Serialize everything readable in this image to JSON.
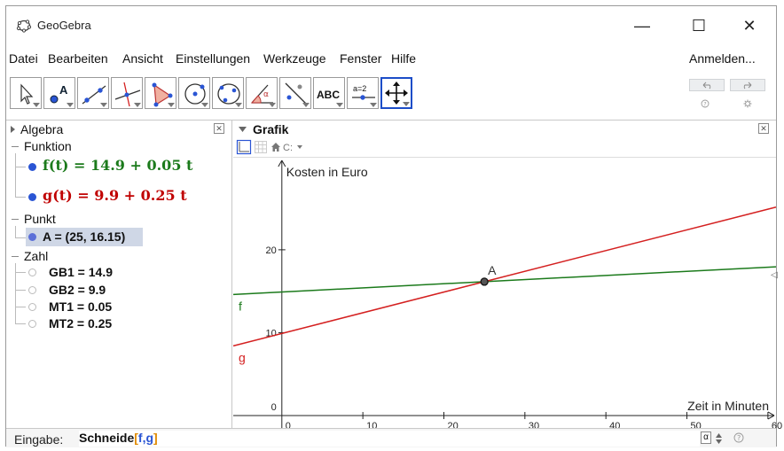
{
  "window": {
    "title": "GeoGebra",
    "minimize": "—",
    "maximize": "☐",
    "close": "✕"
  },
  "menu": {
    "items": [
      "Datei",
      "Bearbeiten",
      "Ansicht",
      "Einstellungen",
      "Werkzeuge",
      "Fenster",
      "Hilfe"
    ],
    "login": "Anmelden..."
  },
  "toolbar": {
    "tools": [
      {
        "name": "move-tool-icon",
        "label": ""
      },
      {
        "name": "point-tool-icon",
        "label": "A"
      },
      {
        "name": "line-tool-icon",
        "label": ""
      },
      {
        "name": "perpendicular-tool-icon",
        "label": ""
      },
      {
        "name": "polygon-tool-icon",
        "label": ""
      },
      {
        "name": "circle-tool-icon",
        "label": ""
      },
      {
        "name": "conic-tool-icon",
        "label": ""
      },
      {
        "name": "angle-tool-icon",
        "label": "α"
      },
      {
        "name": "reflect-tool-icon",
        "label": ""
      },
      {
        "name": "text-tool-icon",
        "label": "ABC"
      },
      {
        "name": "slider-tool-icon",
        "label": "a=2"
      },
      {
        "name": "move-view-tool-icon",
        "label": ""
      }
    ],
    "undo_icon": "undo-icon",
    "redo_icon": "redo-icon"
  },
  "algebra": {
    "title": "Algebra",
    "groups": {
      "funktion": "Funktion",
      "punkt": "Punkt",
      "zahl": "Zahl"
    },
    "f_expr": "f(t)  =  14.9 + 0.05 t",
    "g_expr": "g(t)  =  9.9 + 0.25 t",
    "point": "A = (25, 16.15)",
    "numbers": [
      "GB1 = 14.9",
      "GB2 = 9.9",
      "MT1 = 0.05",
      "MT2 = 0.25"
    ]
  },
  "grafik": {
    "title": "Grafik"
  },
  "input": {
    "label": "Eingabe:",
    "cmd": "Schneide",
    "open": "[",
    "arg1": "f",
    "comma": ",",
    "arg2": "g",
    "close": "]",
    "alpha": "α"
  },
  "colors": {
    "f_line": "#1b7a1b",
    "g_line": "#d42020",
    "point": "#333333",
    "active_tool": "#1c4dc8"
  },
  "chart_data": {
    "type": "line",
    "xlabel": "Zeit in Minuten",
    "ylabel": "Kosten in Euro",
    "xlim": [
      -6,
      61
    ],
    "ylim": [
      -1.5,
      31
    ],
    "x_ticks": [
      0,
      10,
      20,
      30,
      40,
      50,
      60
    ],
    "y_ticks": [
      0,
      10,
      20
    ],
    "series": [
      {
        "name": "f",
        "intercept": 14.9,
        "slope": 0.05
      },
      {
        "name": "g",
        "intercept": 9.9,
        "slope": 0.25
      }
    ],
    "point": {
      "name": "A",
      "x": 25,
      "y": 16.15
    },
    "grid": false
  }
}
